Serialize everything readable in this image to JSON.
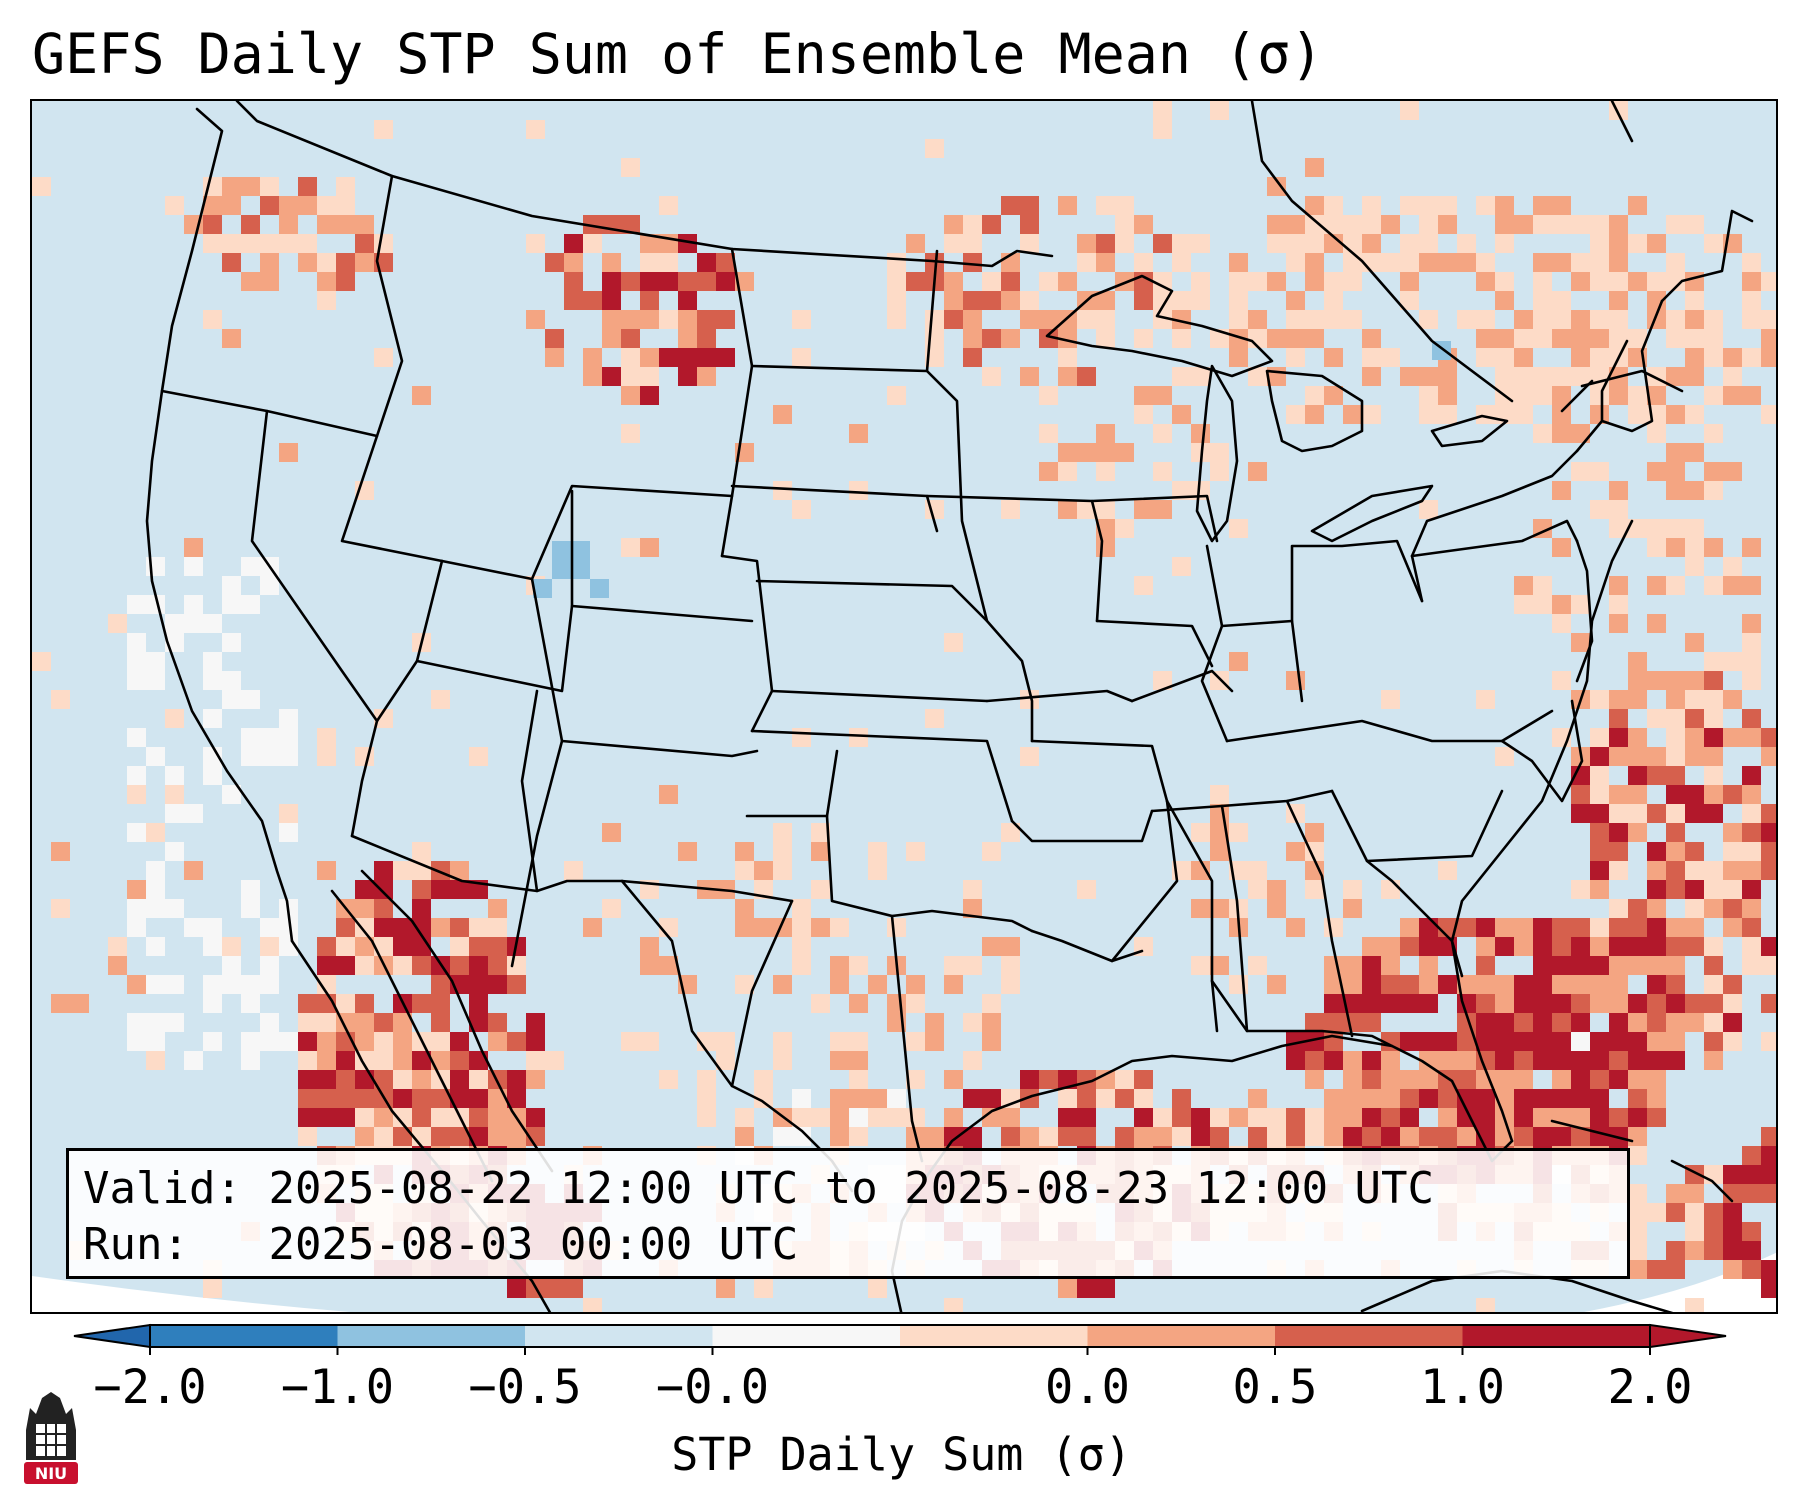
{
  "title": "GEFS Daily STP Sum of Ensemble Mean (σ)",
  "info": {
    "valid_label": "Valid:",
    "valid_value": "2025-08-22 12:00 UTC to 2025-08-23 12:00 UTC",
    "run_label": "Run:",
    "run_value": "2025-08-03 00:00 UTC"
  },
  "colorbar": {
    "label": "STP Daily Sum (σ)",
    "ticks": [
      "−2.0",
      "−1.0",
      "−0.5",
      "−0.0",
      "0.0",
      "0.5",
      "1.0",
      "2.0"
    ],
    "colors": [
      "#2f7fbd",
      "#8fc2e0",
      "#d1e5f0",
      "#f7f7f7",
      "#fddbc7",
      "#f4a582",
      "#d6604d",
      "#b2182b"
    ],
    "extend_low_color": "#2166ac",
    "extend_high_color": "#b2182b"
  },
  "map": {
    "background_color": "#d1e5f0",
    "offdisk_color": "#ffffff",
    "border_color": "#000000"
  },
  "logo": {
    "text": "NIU",
    "color": "#c8102e"
  }
}
